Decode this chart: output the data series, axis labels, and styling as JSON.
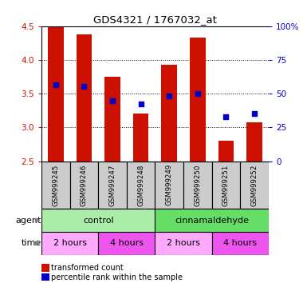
{
  "title": "GDS4321 / 1767032_at",
  "samples": [
    "GSM999245",
    "GSM999246",
    "GSM999247",
    "GSM999248",
    "GSM999249",
    "GSM999250",
    "GSM999251",
    "GSM999252"
  ],
  "bar_values": [
    4.5,
    4.38,
    3.75,
    3.2,
    3.93,
    4.33,
    2.8,
    3.08
  ],
  "bar_bottom": 2.5,
  "percentile_values": [
    3.63,
    3.61,
    3.4,
    3.35,
    3.47,
    3.5,
    3.16,
    3.21
  ],
  "ylim": [
    2.5,
    4.5
  ],
  "right_ylim": [
    0,
    100
  ],
  "right_yticks": [
    0,
    25,
    50,
    75,
    100
  ],
  "right_yticklabels": [
    "0",
    "25",
    "50",
    "75",
    "100%"
  ],
  "left_yticks": [
    2.5,
    3.0,
    3.5,
    4.0,
    4.5
  ],
  "grid_yvals": [
    3.0,
    3.5,
    4.0
  ],
  "bar_color": "#CC1100",
  "dot_color": "#0000CC",
  "agent_groups": [
    {
      "label": "control",
      "span": [
        0,
        4
      ],
      "color": "#AAEEA A"
    },
    {
      "label": "cinnamaldehyde",
      "span": [
        4,
        8
      ],
      "color": "#66DD66"
    }
  ],
  "time_groups": [
    {
      "label": "2 hours",
      "span": [
        0,
        2
      ],
      "color": "#FFAAFF"
    },
    {
      "label": "4 hours",
      "span": [
        2,
        4
      ],
      "color": "#EE55EE"
    },
    {
      "label": "2 hours",
      "span": [
        4,
        6
      ],
      "color": "#FFAAFF"
    },
    {
      "label": "4 hours",
      "span": [
        6,
        8
      ],
      "color": "#EE55EE"
    }
  ],
  "agent_label": "agent",
  "time_label": "time",
  "legend_red_label": "transformed count",
  "legend_blue_label": "percentile rank within the sample",
  "tick_color_left": "#CC1100",
  "tick_color_right": "#0000CC",
  "sample_area_color": "#CCCCCC",
  "bar_width": 0.55
}
